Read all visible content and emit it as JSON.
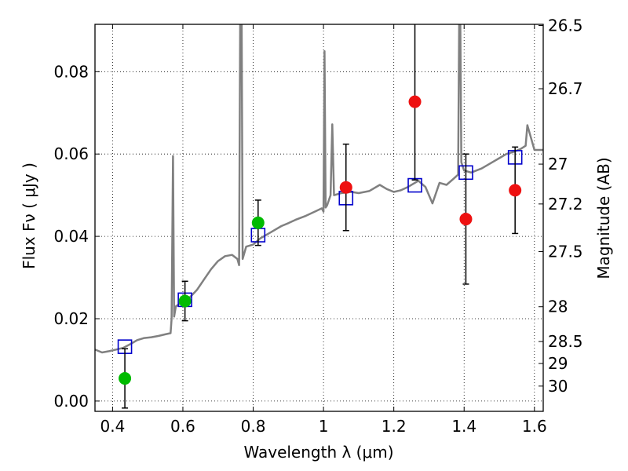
{
  "chart_data": {
    "type": "scatter",
    "xlabel": "Wavelength  λ (μm)",
    "ylabel": "Flux  Fν  ( μJy )",
    "y2label": "Magnitude (AB)",
    "xlim": [
      0.35,
      1.625
    ],
    "ylim": [
      -0.0025,
      0.0915
    ],
    "grid": true,
    "x_ticks": [
      {
        "value": 0.4,
        "label": "0.4"
      },
      {
        "value": 0.6,
        "label": "0.6"
      },
      {
        "value": 0.8,
        "label": "0.8"
      },
      {
        "value": 1.0,
        "label": "1"
      },
      {
        "value": 1.2,
        "label": "1.2"
      },
      {
        "value": 1.4,
        "label": "1.4"
      },
      {
        "value": 1.6,
        "label": "1.6"
      }
    ],
    "y_ticks": [
      {
        "value": 0.0,
        "label": "0.00"
      },
      {
        "value": 0.02,
        "label": "0.02"
      },
      {
        "value": 0.04,
        "label": "0.04"
      },
      {
        "value": 0.06,
        "label": "0.06"
      },
      {
        "value": 0.08,
        "label": "0.08"
      }
    ],
    "magnitude_ticks": [
      {
        "value": 26.5,
        "label": "26.5"
      },
      {
        "value": 26.7,
        "label": "26.7"
      },
      {
        "value": 27.0,
        "label": "27"
      },
      {
        "value": 27.2,
        "label": "27.2"
      },
      {
        "value": 27.5,
        "label": "27.5"
      },
      {
        "value": 28.0,
        "label": "28"
      },
      {
        "value": 28.5,
        "label": "28.5"
      },
      {
        "value": 29.0,
        "label": "29"
      },
      {
        "value": 30.0,
        "label": "30"
      }
    ],
    "model_spectrum": {
      "color": "#808080",
      "points": [
        [
          0.35,
          0.0125
        ],
        [
          0.37,
          0.0118
        ],
        [
          0.39,
          0.0121
        ],
        [
          0.41,
          0.0125
        ],
        [
          0.43,
          0.0129
        ],
        [
          0.45,
          0.0138
        ],
        [
          0.47,
          0.0148
        ],
        [
          0.49,
          0.0153
        ],
        [
          0.51,
          0.0155
        ],
        [
          0.53,
          0.0158
        ],
        [
          0.55,
          0.0162
        ],
        [
          0.565,
          0.0165
        ],
        [
          0.568,
          0.02
        ],
        [
          0.572,
          0.0595
        ],
        [
          0.575,
          0.0205
        ],
        [
          0.58,
          0.023
        ],
        [
          0.6,
          0.0242
        ],
        [
          0.62,
          0.0252
        ],
        [
          0.64,
          0.027
        ],
        [
          0.66,
          0.0295
        ],
        [
          0.68,
          0.032
        ],
        [
          0.7,
          0.034
        ],
        [
          0.72,
          0.0352
        ],
        [
          0.74,
          0.0355
        ],
        [
          0.755,
          0.0345
        ],
        [
          0.76,
          0.033
        ],
        [
          0.763,
          0.094
        ],
        [
          0.767,
          0.094
        ],
        [
          0.77,
          0.0345
        ],
        [
          0.78,
          0.0375
        ],
        [
          0.8,
          0.038
        ],
        [
          0.82,
          0.0395
        ],
        [
          0.85,
          0.041
        ],
        [
          0.88,
          0.0425
        ],
        [
          0.9,
          0.0432
        ],
        [
          0.92,
          0.044
        ],
        [
          0.95,
          0.045
        ],
        [
          0.98,
          0.0462
        ],
        [
          0.995,
          0.0468
        ],
        [
          1.0,
          0.046
        ],
        [
          1.003,
          0.085
        ],
        [
          1.006,
          0.047
        ],
        [
          1.01,
          0.0475
        ],
        [
          1.02,
          0.05
        ],
        [
          1.025,
          0.0672
        ],
        [
          1.03,
          0.05
        ],
        [
          1.05,
          0.0505
        ],
        [
          1.08,
          0.0508
        ],
        [
          1.1,
          0.0505
        ],
        [
          1.13,
          0.051
        ],
        [
          1.16,
          0.0525
        ],
        [
          1.18,
          0.0515
        ],
        [
          1.2,
          0.0508
        ],
        [
          1.22,
          0.0512
        ],
        [
          1.24,
          0.052
        ],
        [
          1.27,
          0.0535
        ],
        [
          1.29,
          0.052
        ],
        [
          1.31,
          0.048
        ],
        [
          1.33,
          0.053
        ],
        [
          1.35,
          0.0525
        ],
        [
          1.37,
          0.054
        ],
        [
          1.383,
          0.055
        ],
        [
          1.386,
          0.094
        ],
        [
          1.389,
          0.094
        ],
        [
          1.392,
          0.058
        ],
        [
          1.4,
          0.056
        ],
        [
          1.42,
          0.0555
        ],
        [
          1.45,
          0.0565
        ],
        [
          1.48,
          0.058
        ],
        [
          1.5,
          0.059
        ],
        [
          1.52,
          0.06
        ],
        [
          1.54,
          0.0605
        ],
        [
          1.56,
          0.0612
        ],
        [
          1.575,
          0.062
        ],
        [
          1.58,
          0.067
        ],
        [
          1.59,
          0.064
        ],
        [
          1.6,
          0.061
        ],
        [
          1.625,
          0.061
        ]
      ]
    },
    "series": [
      {
        "marker": "open-square",
        "color": "#0000cc",
        "points": [
          {
            "x": 0.435,
            "y": 0.0132
          },
          {
            "x": 0.606,
            "y": 0.0246
          },
          {
            "x": 0.814,
            "y": 0.0403
          },
          {
            "x": 1.064,
            "y": 0.0493
          },
          {
            "x": 1.26,
            "y": 0.0524
          },
          {
            "x": 1.405,
            "y": 0.0555
          },
          {
            "x": 1.545,
            "y": 0.0592
          }
        ]
      },
      {
        "marker": "filled-circle",
        "color": "#00bb00",
        "points": [
          {
            "x": 0.435,
            "y": 0.0055,
            "err": 0.0072
          },
          {
            "x": 0.606,
            "y": 0.0243,
            "err": 0.0048
          },
          {
            "x": 0.814,
            "y": 0.0433,
            "err": 0.0055
          }
        ]
      },
      {
        "marker": "filled-circle",
        "color": "#ee1111",
        "points": [
          {
            "x": 1.064,
            "y": 0.0519,
            "err": 0.0105
          },
          {
            "x": 1.26,
            "y": 0.0727,
            "err": 0.019
          },
          {
            "x": 1.405,
            "y": 0.0442,
            "err": 0.0158
          },
          {
            "x": 1.545,
            "y": 0.0512,
            "err": 0.0105
          }
        ]
      }
    ]
  }
}
